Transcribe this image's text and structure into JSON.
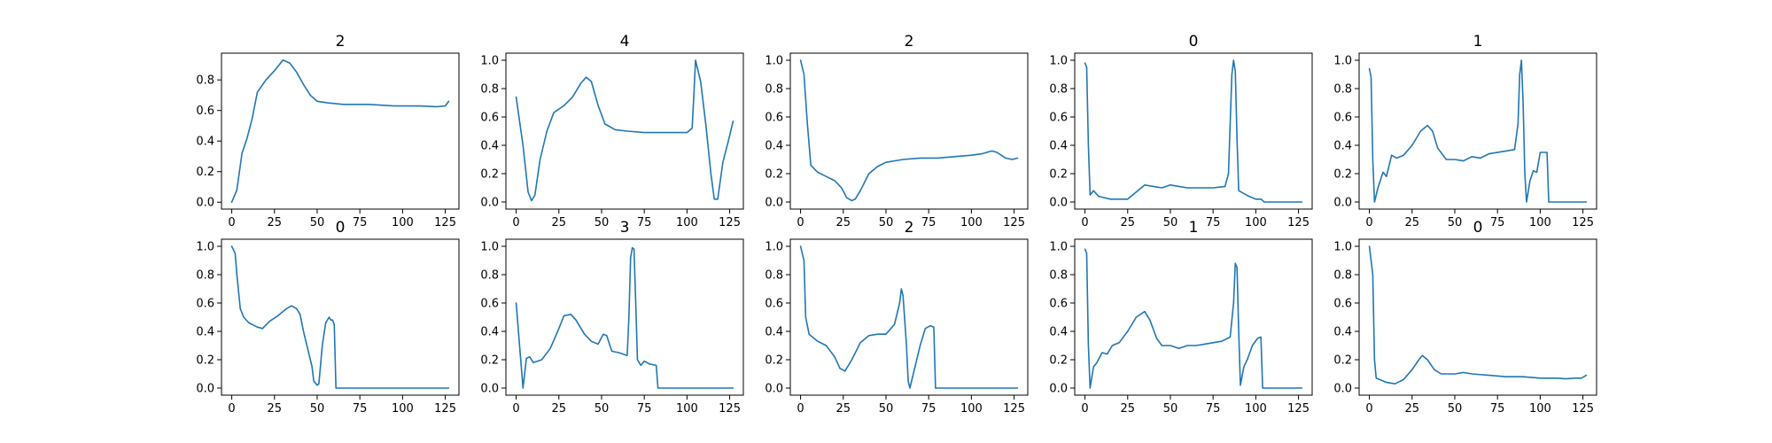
{
  "colors": {
    "series": "#1f77b4"
  },
  "chart_data": [
    {
      "type": "line",
      "title": "2",
      "xlim": [
        -6,
        133
      ],
      "ylim": [
        -0.045,
        0.975
      ],
      "xticks": [
        0,
        25,
        50,
        75,
        100,
        125
      ],
      "yticks": [
        0.0,
        0.2,
        0.4,
        0.6,
        0.8
      ],
      "points": [
        [
          0,
          0.0
        ],
        [
          3,
          0.08
        ],
        [
          6,
          0.32
        ],
        [
          9,
          0.42
        ],
        [
          12,
          0.55
        ],
        [
          15,
          0.72
        ],
        [
          20,
          0.8
        ],
        [
          25,
          0.86
        ],
        [
          30,
          0.93
        ],
        [
          34,
          0.91
        ],
        [
          38,
          0.85
        ],
        [
          42,
          0.77
        ],
        [
          46,
          0.7
        ],
        [
          50,
          0.66
        ],
        [
          56,
          0.65
        ],
        [
          65,
          0.64
        ],
        [
          80,
          0.64
        ],
        [
          95,
          0.63
        ],
        [
          110,
          0.63
        ],
        [
          120,
          0.625
        ],
        [
          125,
          0.63
        ],
        [
          127,
          0.66
        ]
      ]
    },
    {
      "type": "line",
      "title": "4",
      "xlim": [
        -6,
        133
      ],
      "ylim": [
        -0.05,
        1.05
      ],
      "xticks": [
        0,
        25,
        50,
        75,
        100,
        125
      ],
      "yticks": [
        0.0,
        0.2,
        0.4,
        0.6,
        0.8,
        1.0
      ],
      "points": [
        [
          0,
          0.74
        ],
        [
          4,
          0.4
        ],
        [
          7,
          0.07
        ],
        [
          9,
          0.01
        ],
        [
          11,
          0.05
        ],
        [
          14,
          0.3
        ],
        [
          18,
          0.5
        ],
        [
          22,
          0.63
        ],
        [
          28,
          0.68
        ],
        [
          33,
          0.74
        ],
        [
          38,
          0.84
        ],
        [
          41,
          0.88
        ],
        [
          44,
          0.85
        ],
        [
          48,
          0.68
        ],
        [
          52,
          0.55
        ],
        [
          58,
          0.51
        ],
        [
          65,
          0.5
        ],
        [
          75,
          0.49
        ],
        [
          90,
          0.49
        ],
        [
          100,
          0.49
        ],
        [
          103,
          0.52
        ],
        [
          104,
          0.75
        ],
        [
          105,
          1.0
        ],
        [
          108,
          0.85
        ],
        [
          111,
          0.55
        ],
        [
          114,
          0.2
        ],
        [
          116,
          0.02
        ],
        [
          118,
          0.02
        ],
        [
          121,
          0.28
        ],
        [
          124,
          0.42
        ],
        [
          127,
          0.57
        ]
      ]
    },
    {
      "type": "line",
      "title": "2",
      "xlim": [
        -6,
        133
      ],
      "ylim": [
        -0.05,
        1.05
      ],
      "xticks": [
        0,
        25,
        50,
        75,
        100,
        125
      ],
      "yticks": [
        0.0,
        0.2,
        0.4,
        0.6,
        0.8,
        1.0
      ],
      "points": [
        [
          0,
          1.0
        ],
        [
          2,
          0.9
        ],
        [
          4,
          0.55
        ],
        [
          6,
          0.26
        ],
        [
          10,
          0.21
        ],
        [
          15,
          0.18
        ],
        [
          20,
          0.15
        ],
        [
          24,
          0.1
        ],
        [
          27,
          0.03
        ],
        [
          30,
          0.01
        ],
        [
          32,
          0.02
        ],
        [
          35,
          0.08
        ],
        [
          40,
          0.2
        ],
        [
          45,
          0.25
        ],
        [
          50,
          0.28
        ],
        [
          60,
          0.3
        ],
        [
          70,
          0.31
        ],
        [
          80,
          0.31
        ],
        [
          90,
          0.32
        ],
        [
          100,
          0.33
        ],
        [
          106,
          0.34
        ],
        [
          112,
          0.36
        ],
        [
          115,
          0.35
        ],
        [
          120,
          0.31
        ],
        [
          124,
          0.3
        ],
        [
          127,
          0.31
        ]
      ]
    },
    {
      "type": "line",
      "title": "0",
      "xlim": [
        -6,
        133
      ],
      "ylim": [
        -0.05,
        1.05
      ],
      "xticks": [
        0,
        25,
        50,
        75,
        100,
        125
      ],
      "yticks": [
        0.0,
        0.2,
        0.4,
        0.6,
        0.8,
        1.0
      ],
      "points": [
        [
          0,
          0.98
        ],
        [
          1,
          0.95
        ],
        [
          2,
          0.4
        ],
        [
          3,
          0.05
        ],
        [
          5,
          0.08
        ],
        [
          8,
          0.04
        ],
        [
          15,
          0.02
        ],
        [
          25,
          0.02
        ],
        [
          30,
          0.07
        ],
        [
          35,
          0.12
        ],
        [
          40,
          0.11
        ],
        [
          45,
          0.1
        ],
        [
          50,
          0.12
        ],
        [
          55,
          0.11
        ],
        [
          60,
          0.1
        ],
        [
          75,
          0.1
        ],
        [
          82,
          0.11
        ],
        [
          84,
          0.2
        ],
        [
          85,
          0.55
        ],
        [
          86,
          0.9
        ],
        [
          87,
          1.0
        ],
        [
          88,
          0.92
        ],
        [
          89,
          0.45
        ],
        [
          90,
          0.08
        ],
        [
          93,
          0.06
        ],
        [
          96,
          0.04
        ],
        [
          100,
          0.02
        ],
        [
          103,
          0.02
        ],
        [
          105,
          0.0
        ],
        [
          115,
          0.0
        ],
        [
          127,
          0.0
        ]
      ]
    },
    {
      "type": "line",
      "title": "1",
      "xlim": [
        -6,
        133
      ],
      "ylim": [
        -0.05,
        1.05
      ],
      "xticks": [
        0,
        25,
        50,
        75,
        100,
        125
      ],
      "yticks": [
        0.0,
        0.2,
        0.4,
        0.6,
        0.8,
        1.0
      ],
      "points": [
        [
          0,
          0.94
        ],
        [
          1,
          0.88
        ],
        [
          2,
          0.3
        ],
        [
          3,
          0.0
        ],
        [
          5,
          0.1
        ],
        [
          8,
          0.21
        ],
        [
          10,
          0.18
        ],
        [
          13,
          0.33
        ],
        [
          16,
          0.31
        ],
        [
          20,
          0.33
        ],
        [
          25,
          0.4
        ],
        [
          30,
          0.5
        ],
        [
          34,
          0.54
        ],
        [
          37,
          0.5
        ],
        [
          40,
          0.38
        ],
        [
          45,
          0.3
        ],
        [
          50,
          0.3
        ],
        [
          55,
          0.29
        ],
        [
          60,
          0.32
        ],
        [
          65,
          0.31
        ],
        [
          70,
          0.34
        ],
        [
          80,
          0.36
        ],
        [
          85,
          0.37
        ],
        [
          87,
          0.55
        ],
        [
          88,
          0.9
        ],
        [
          89,
          1.0
        ],
        [
          90,
          0.7
        ],
        [
          91,
          0.2
        ],
        [
          92,
          0.0
        ],
        [
          94,
          0.15
        ],
        [
          96,
          0.22
        ],
        [
          98,
          0.21
        ],
        [
          100,
          0.35
        ],
        [
          104,
          0.35
        ],
        [
          105,
          0.0
        ],
        [
          115,
          0.0
        ],
        [
          127,
          0.0
        ]
      ]
    },
    {
      "type": "line",
      "title": "0",
      "xlim": [
        -6,
        133
      ],
      "ylim": [
        -0.05,
        1.05
      ],
      "xticks": [
        0,
        25,
        50,
        75,
        100,
        125
      ],
      "yticks": [
        0.0,
        0.2,
        0.4,
        0.6,
        0.8,
        1.0
      ],
      "points": [
        [
          0,
          1.0
        ],
        [
          2,
          0.95
        ],
        [
          3,
          0.8
        ],
        [
          5,
          0.56
        ],
        [
          7,
          0.5
        ],
        [
          10,
          0.46
        ],
        [
          15,
          0.43
        ],
        [
          18,
          0.42
        ],
        [
          22,
          0.47
        ],
        [
          27,
          0.51
        ],
        [
          32,
          0.56
        ],
        [
          35,
          0.58
        ],
        [
          38,
          0.56
        ],
        [
          40,
          0.52
        ],
        [
          42,
          0.4
        ],
        [
          45,
          0.25
        ],
        [
          47,
          0.15
        ],
        [
          48,
          0.05
        ],
        [
          50,
          0.02
        ],
        [
          51,
          0.03
        ],
        [
          53,
          0.3
        ],
        [
          55,
          0.46
        ],
        [
          57,
          0.5
        ],
        [
          58,
          0.48
        ],
        [
          59,
          0.48
        ],
        [
          60,
          0.45
        ],
        [
          61,
          0.0
        ],
        [
          80,
          0.0
        ],
        [
          127,
          0.0
        ]
      ]
    },
    {
      "type": "line",
      "title": "3",
      "xlim": [
        -6,
        133
      ],
      "ylim": [
        -0.05,
        1.05
      ],
      "xticks": [
        0,
        25,
        50,
        75,
        100,
        125
      ],
      "yticks": [
        0.0,
        0.2,
        0.4,
        0.6,
        0.8,
        1.0
      ],
      "points": [
        [
          0,
          0.6
        ],
        [
          2,
          0.3
        ],
        [
          4,
          0.0
        ],
        [
          6,
          0.21
        ],
        [
          8,
          0.22
        ],
        [
          10,
          0.18
        ],
        [
          15,
          0.2
        ],
        [
          20,
          0.28
        ],
        [
          25,
          0.42
        ],
        [
          28,
          0.51
        ],
        [
          32,
          0.52
        ],
        [
          35,
          0.48
        ],
        [
          40,
          0.38
        ],
        [
          44,
          0.33
        ],
        [
          48,
          0.31
        ],
        [
          51,
          0.38
        ],
        [
          53,
          0.37
        ],
        [
          56,
          0.26
        ],
        [
          60,
          0.25
        ],
        [
          65,
          0.23
        ],
        [
          66,
          0.5
        ],
        [
          67,
          0.92
        ],
        [
          68,
          0.99
        ],
        [
          69,
          0.98
        ],
        [
          70,
          0.6
        ],
        [
          71,
          0.2
        ],
        [
          73,
          0.16
        ],
        [
          75,
          0.19
        ],
        [
          78,
          0.17
        ],
        [
          82,
          0.16
        ],
        [
          83,
          0.0
        ],
        [
          100,
          0.0
        ],
        [
          127,
          0.0
        ]
      ]
    },
    {
      "type": "line",
      "title": "2",
      "xlim": [
        -6,
        133
      ],
      "ylim": [
        -0.05,
        1.05
      ],
      "xticks": [
        0,
        25,
        50,
        75,
        100,
        125
      ],
      "yticks": [
        0.0,
        0.2,
        0.4,
        0.6,
        0.8,
        1.0
      ],
      "points": [
        [
          0,
          1.0
        ],
        [
          2,
          0.9
        ],
        [
          3,
          0.5
        ],
        [
          5,
          0.38
        ],
        [
          10,
          0.33
        ],
        [
          15,
          0.3
        ],
        [
          20,
          0.22
        ],
        [
          23,
          0.14
        ],
        [
          26,
          0.12
        ],
        [
          30,
          0.2
        ],
        [
          35,
          0.32
        ],
        [
          40,
          0.37
        ],
        [
          45,
          0.38
        ],
        [
          50,
          0.38
        ],
        [
          55,
          0.45
        ],
        [
          58,
          0.6
        ],
        [
          59,
          0.7
        ],
        [
          60,
          0.65
        ],
        [
          62,
          0.3
        ],
        [
          63,
          0.05
        ],
        [
          64,
          0.0
        ],
        [
          66,
          0.1
        ],
        [
          70,
          0.3
        ],
        [
          73,
          0.42
        ],
        [
          76,
          0.44
        ],
        [
          78,
          0.43
        ],
        [
          79,
          0.0
        ],
        [
          100,
          0.0
        ],
        [
          127,
          0.0
        ]
      ]
    },
    {
      "type": "line",
      "title": "1",
      "xlim": [
        -6,
        133
      ],
      "ylim": [
        -0.05,
        1.05
      ],
      "xticks": [
        0,
        25,
        50,
        75,
        100,
        125
      ],
      "yticks": [
        0.0,
        0.2,
        0.4,
        0.6,
        0.8,
        1.0
      ],
      "points": [
        [
          0,
          0.98
        ],
        [
          1,
          0.95
        ],
        [
          2,
          0.3
        ],
        [
          3,
          0.0
        ],
        [
          5,
          0.15
        ],
        [
          7,
          0.18
        ],
        [
          10,
          0.25
        ],
        [
          13,
          0.24
        ],
        [
          16,
          0.3
        ],
        [
          20,
          0.32
        ],
        [
          25,
          0.4
        ],
        [
          30,
          0.5
        ],
        [
          35,
          0.54
        ],
        [
          38,
          0.48
        ],
        [
          42,
          0.35
        ],
        [
          45,
          0.3
        ],
        [
          50,
          0.3
        ],
        [
          55,
          0.28
        ],
        [
          60,
          0.3
        ],
        [
          65,
          0.3
        ],
        [
          70,
          0.31
        ],
        [
          80,
          0.33
        ],
        [
          85,
          0.36
        ],
        [
          87,
          0.6
        ],
        [
          88,
          0.88
        ],
        [
          89,
          0.85
        ],
        [
          90,
          0.4
        ],
        [
          91,
          0.02
        ],
        [
          93,
          0.15
        ],
        [
          95,
          0.2
        ],
        [
          98,
          0.3
        ],
        [
          101,
          0.35
        ],
        [
          103,
          0.36
        ],
        [
          104,
          0.0
        ],
        [
          115,
          0.0
        ],
        [
          127,
          0.0
        ]
      ]
    },
    {
      "type": "line",
      "title": "0",
      "xlim": [
        -6,
        133
      ],
      "ylim": [
        -0.05,
        1.05
      ],
      "xticks": [
        0,
        25,
        50,
        75,
        100,
        125
      ],
      "yticks": [
        0.0,
        0.2,
        0.4,
        0.6,
        0.8,
        1.0
      ],
      "points": [
        [
          0,
          1.0
        ],
        [
          2,
          0.8
        ],
        [
          3,
          0.2
        ],
        [
          4,
          0.07
        ],
        [
          6,
          0.06
        ],
        [
          10,
          0.04
        ],
        [
          15,
          0.03
        ],
        [
          20,
          0.06
        ],
        [
          25,
          0.13
        ],
        [
          29,
          0.2
        ],
        [
          31,
          0.23
        ],
        [
          34,
          0.2
        ],
        [
          38,
          0.13
        ],
        [
          42,
          0.1
        ],
        [
          50,
          0.1
        ],
        [
          55,
          0.11
        ],
        [
          60,
          0.1
        ],
        [
          70,
          0.09
        ],
        [
          80,
          0.08
        ],
        [
          90,
          0.08
        ],
        [
          100,
          0.07
        ],
        [
          110,
          0.07
        ],
        [
          115,
          0.065
        ],
        [
          120,
          0.07
        ],
        [
          124,
          0.07
        ],
        [
          127,
          0.09
        ]
      ]
    }
  ]
}
